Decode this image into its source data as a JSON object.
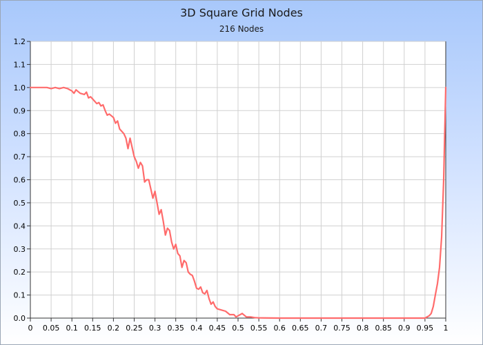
{
  "chart_data": {
    "type": "line",
    "title": "3D Square Grid Nodes",
    "subtitle": "216 Nodes",
    "xlabel": "",
    "ylabel": "",
    "xlim": [
      0,
      1
    ],
    "ylim": [
      0,
      1.2
    ],
    "x_ticks": [
      "0",
      "0.05",
      "0.1",
      "0.15",
      "0.2",
      "0.25",
      "0.3",
      "0.35",
      "0.4",
      "0.45",
      "0.5",
      "0.55",
      "0.6",
      "0.65",
      "0.7",
      "0.75",
      "0.8",
      "0.85",
      "0.9",
      "0.95",
      "1"
    ],
    "y_ticks": [
      "0.0",
      "0.1",
      "0.2",
      "0.3",
      "0.4",
      "0.5",
      "0.6",
      "0.7",
      "0.8",
      "0.9",
      "1.0",
      "1.1",
      "1.2"
    ],
    "grid": true,
    "line_color": "#ff6b6b",
    "series": [
      {
        "x": [
          0,
          0.02,
          0.04,
          0.05,
          0.06,
          0.07,
          0.08,
          0.09,
          0.095,
          0.1,
          0.105,
          0.11,
          0.12,
          0.13,
          0.135,
          0.14,
          0.145,
          0.15,
          0.16,
          0.165,
          0.17,
          0.175,
          0.18,
          0.185,
          0.19,
          0.2,
          0.205,
          0.21,
          0.215,
          0.22,
          0.225,
          0.23,
          0.235,
          0.24,
          0.245,
          0.25,
          0.255,
          0.26,
          0.265,
          0.27,
          0.275,
          0.28,
          0.285,
          0.29,
          0.295,
          0.3,
          0.305,
          0.31,
          0.315,
          0.32,
          0.325,
          0.33,
          0.335,
          0.34,
          0.345,
          0.35,
          0.355,
          0.36,
          0.365,
          0.37,
          0.375,
          0.38,
          0.385,
          0.39,
          0.395,
          0.4,
          0.405,
          0.41,
          0.415,
          0.42,
          0.425,
          0.43,
          0.435,
          0.44,
          0.445,
          0.45,
          0.46,
          0.47,
          0.48,
          0.49,
          0.495,
          0.5,
          0.51,
          0.52,
          0.53,
          0.54,
          0.55,
          0.6,
          0.7,
          0.8,
          0.9,
          0.94,
          0.95,
          0.955,
          0.96,
          0.965,
          0.97,
          0.975,
          0.98,
          0.985,
          0.99,
          0.995,
          1.0
        ],
        "y": [
          1.0,
          1.0,
          1.0,
          0.995,
          1.0,
          0.995,
          1.0,
          0.995,
          0.99,
          0.985,
          0.975,
          0.99,
          0.975,
          0.97,
          0.98,
          0.955,
          0.96,
          0.95,
          0.93,
          0.935,
          0.92,
          0.925,
          0.9,
          0.88,
          0.885,
          0.87,
          0.845,
          0.855,
          0.82,
          0.81,
          0.8,
          0.78,
          0.735,
          0.78,
          0.74,
          0.7,
          0.68,
          0.65,
          0.675,
          0.66,
          0.59,
          0.6,
          0.6,
          0.56,
          0.52,
          0.55,
          0.5,
          0.45,
          0.47,
          0.42,
          0.36,
          0.39,
          0.38,
          0.33,
          0.3,
          0.32,
          0.28,
          0.27,
          0.22,
          0.25,
          0.24,
          0.2,
          0.19,
          0.185,
          0.16,
          0.13,
          0.125,
          0.135,
          0.11,
          0.105,
          0.12,
          0.085,
          0.06,
          0.07,
          0.05,
          0.04,
          0.035,
          0.03,
          0.015,
          0.015,
          0.005,
          0.01,
          0.02,
          0.005,
          0.005,
          0.002,
          0.001,
          0.0,
          0.0,
          0.0,
          0.0,
          0.0,
          0.0,
          0.005,
          0.01,
          0.02,
          0.05,
          0.1,
          0.15,
          0.22,
          0.35,
          0.6,
          1.0
        ]
      }
    ]
  }
}
